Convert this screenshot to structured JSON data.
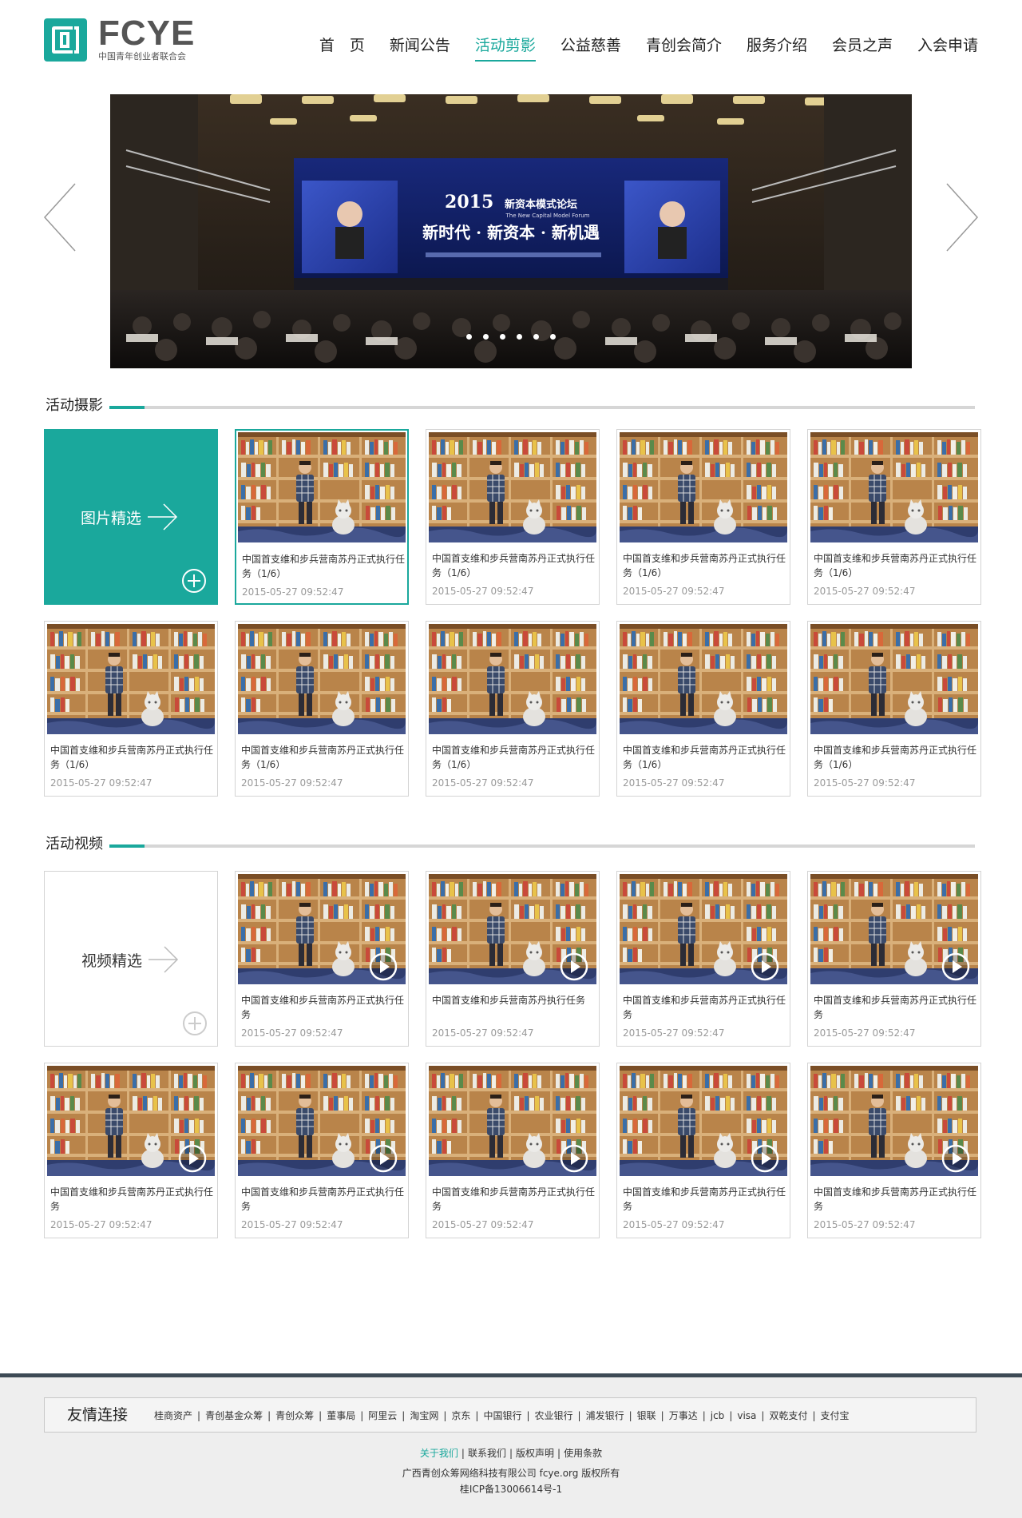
{
  "logo": {
    "title": "FCYE",
    "subtitle": "中国青年创业者联合会"
  },
  "nav": [
    {
      "label": "首　页"
    },
    {
      "label": "新闻公告"
    },
    {
      "label": "活动剪影",
      "active": true
    },
    {
      "label": "公益慈善"
    },
    {
      "label": "青创会简介"
    },
    {
      "label": "服务介绍"
    },
    {
      "label": "会员之声"
    },
    {
      "label": "入会申请"
    }
  ],
  "banner": {
    "year": "2015",
    "forum_name": "新资本模式论坛",
    "forum_name_en": "The New Capital Model Forum",
    "slogan": "新时代 · 新资本 · 新机遇",
    "slide_count": 6,
    "active_slide": 1
  },
  "photos": {
    "section_title": "活动摄影",
    "feature_label": "图片精选",
    "items": [
      {
        "title": "中国首支维和步兵营南苏丹正式执行任务（1/6）",
        "date": "2015-05-27 09:52:47",
        "active": true
      },
      {
        "title": "中国首支维和步兵营南苏丹正式执行任务（1/6）",
        "date": "2015-05-27 09:52:47"
      },
      {
        "title": "中国首支维和步兵营南苏丹正式执行任务（1/6）",
        "date": "2015-05-27 09:52:47"
      },
      {
        "title": "中国首支维和步兵营南苏丹正式执行任务（1/6）",
        "date": "2015-05-27 09:52:47"
      },
      {
        "title": "中国首支维和步兵营南苏丹正式执行任务（1/6）",
        "date": "2015-05-27 09:52:47"
      },
      {
        "title": "中国首支维和步兵营南苏丹正式执行任务（1/6）",
        "date": "2015-05-27 09:52:47"
      },
      {
        "title": "中国首支维和步兵营南苏丹正式执行任务（1/6）",
        "date": "2015-05-27 09:52:47"
      },
      {
        "title": "中国首支维和步兵营南苏丹正式执行任务（1/6）",
        "date": "2015-05-27 09:52:47"
      },
      {
        "title": "中国首支维和步兵营南苏丹正式执行任务（1/6）",
        "date": "2015-05-27 09:52:47"
      }
    ]
  },
  "videos": {
    "section_title": "活动视频",
    "feature_label": "视频精选",
    "items": [
      {
        "title": "中国首支维和步兵营南苏丹正式执行任务",
        "date": "2015-05-27 09:52:47"
      },
      {
        "title": "中国首支维和步兵营南苏丹执行任务",
        "date": "2015-05-27 09:52:47"
      },
      {
        "title": "中国首支维和步兵营南苏丹正式执行任务",
        "date": "2015-05-27 09:52:47"
      },
      {
        "title": "中国首支维和步兵营南苏丹正式执行任务",
        "date": "2015-05-27 09:52:47"
      },
      {
        "title": "中国首支维和步兵营南苏丹正式执行任务",
        "date": "2015-05-27 09:52:47"
      },
      {
        "title": "中国首支维和步兵营南苏丹正式执行任务",
        "date": "2015-05-27 09:52:47"
      },
      {
        "title": "中国首支维和步兵营南苏丹正式执行任务",
        "date": "2015-05-27 09:52:47"
      },
      {
        "title": "中国首支维和步兵营南苏丹正式执行任务",
        "date": "2015-05-27 09:52:47"
      },
      {
        "title": "中国首支维和步兵营南苏丹正式执行任务",
        "date": "2015-05-27 09:52:47"
      }
    ]
  },
  "footer": {
    "friend_title": "友情连接",
    "friend_links": [
      "桂商资产",
      "青创基金众筹",
      "青创众筹",
      "董事局",
      "阿里云",
      "淘宝网",
      "京东",
      "中国银行",
      "农业银行",
      "浦发银行",
      "银联",
      "万事达",
      "jcb",
      "visa",
      "双乾支付",
      "支付宝"
    ],
    "links": [
      "关于我们",
      "联系我们",
      "版权声明",
      "使用条款"
    ],
    "company": "广西青创众筹网络科技有限公司 fcye.org 版权所有",
    "icp": "桂ICP备13006614号-1"
  },
  "colors": {
    "accent": "#1aa89c",
    "footer_bar": "#3d4a55",
    "footer_bg": "#eeeeee"
  }
}
